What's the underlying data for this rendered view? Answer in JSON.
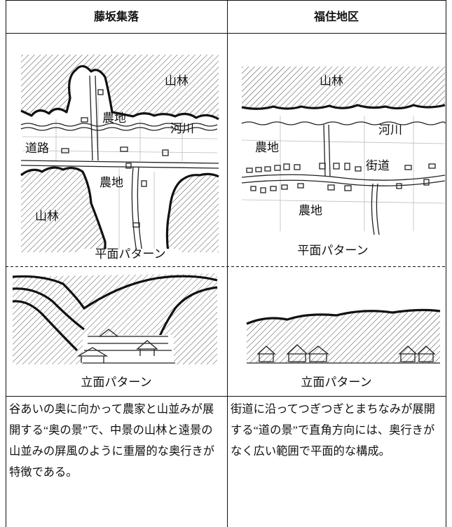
{
  "table": {
    "headers": [
      "藤坂集落",
      "福住地区"
    ],
    "plans": [
      {
        "labels": [
          "山林",
          "河川",
          "農地",
          "道路",
          "農地",
          "山林"
        ],
        "caption": "平面パターン"
      },
      {
        "labels": [
          "山林",
          "河川",
          "農地",
          "街道",
          "農地"
        ],
        "caption": "平面パターン"
      }
    ],
    "elevations": [
      {
        "caption": "立面パターン"
      },
      {
        "caption": "立面パターン"
      }
    ],
    "descriptions": [
      "谷あいの奥に向かって農家と山並みが展開する“奥の景”で、中景の山林と遠景の山並みの屏風のように重層的な奥行きが特徴である。",
      "街道に沿ってつぎつぎとまちなみが展開する“道の景”で直角方向には、奥行きがなく広い範囲で平面的な構成。"
    ]
  }
}
